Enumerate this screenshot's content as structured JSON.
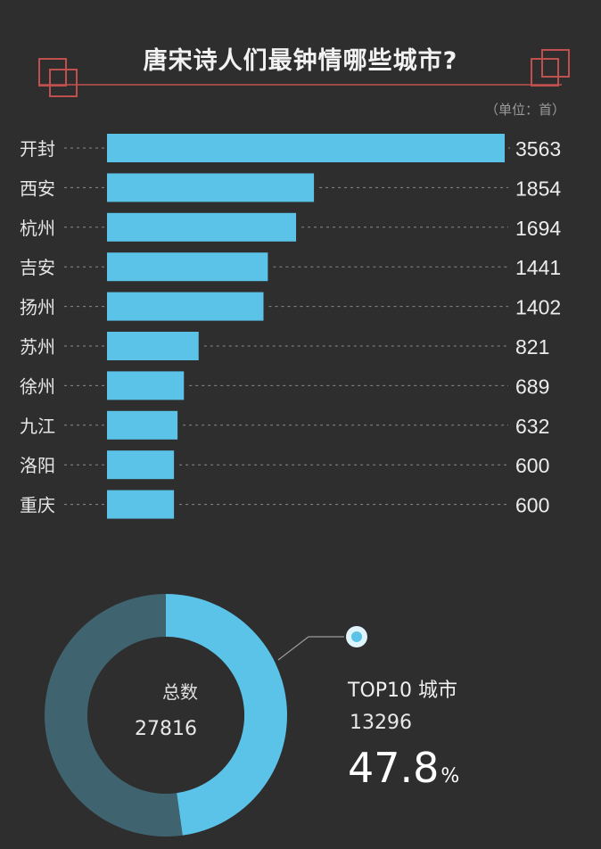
{
  "title": "唐宋诗人们最钟情哪些城市?",
  "unit_note": "（单位：首）",
  "colors": {
    "background": "#2e2e2e",
    "bar": "#5bc3e8",
    "donut_highlight": "#5bc3e8",
    "donut_rest": "#3f6470",
    "title_deco": "#c0504d",
    "grid_dash": "#8a8a8a"
  },
  "chart_data": [
    {
      "type": "bar",
      "orientation": "horizontal",
      "title": "唐宋诗人们最钟情哪些城市?",
      "unit": "（单位：首）",
      "categories": [
        "开封",
        "西安",
        "杭州",
        "吉安",
        "扬州",
        "苏州",
        "徐州",
        "九江",
        "洛阳",
        "重庆"
      ],
      "values": [
        3563,
        1854,
        1694,
        1441,
        1402,
        821,
        689,
        632,
        600,
        600
      ],
      "xlim": [
        0,
        3563
      ],
      "grid": false,
      "data_labels": true
    },
    {
      "type": "pie",
      "style": "donut",
      "center_label": "总数",
      "center_value": "27816",
      "total": 27816,
      "slices": [
        {
          "label": "TOP10 城市",
          "value": 13296
        },
        {
          "label": "",
          "value": 14520
        }
      ],
      "callout": {
        "label": "TOP10 城市",
        "value": "13296",
        "percent": "47.8",
        "percent_sign": "%"
      }
    }
  ]
}
